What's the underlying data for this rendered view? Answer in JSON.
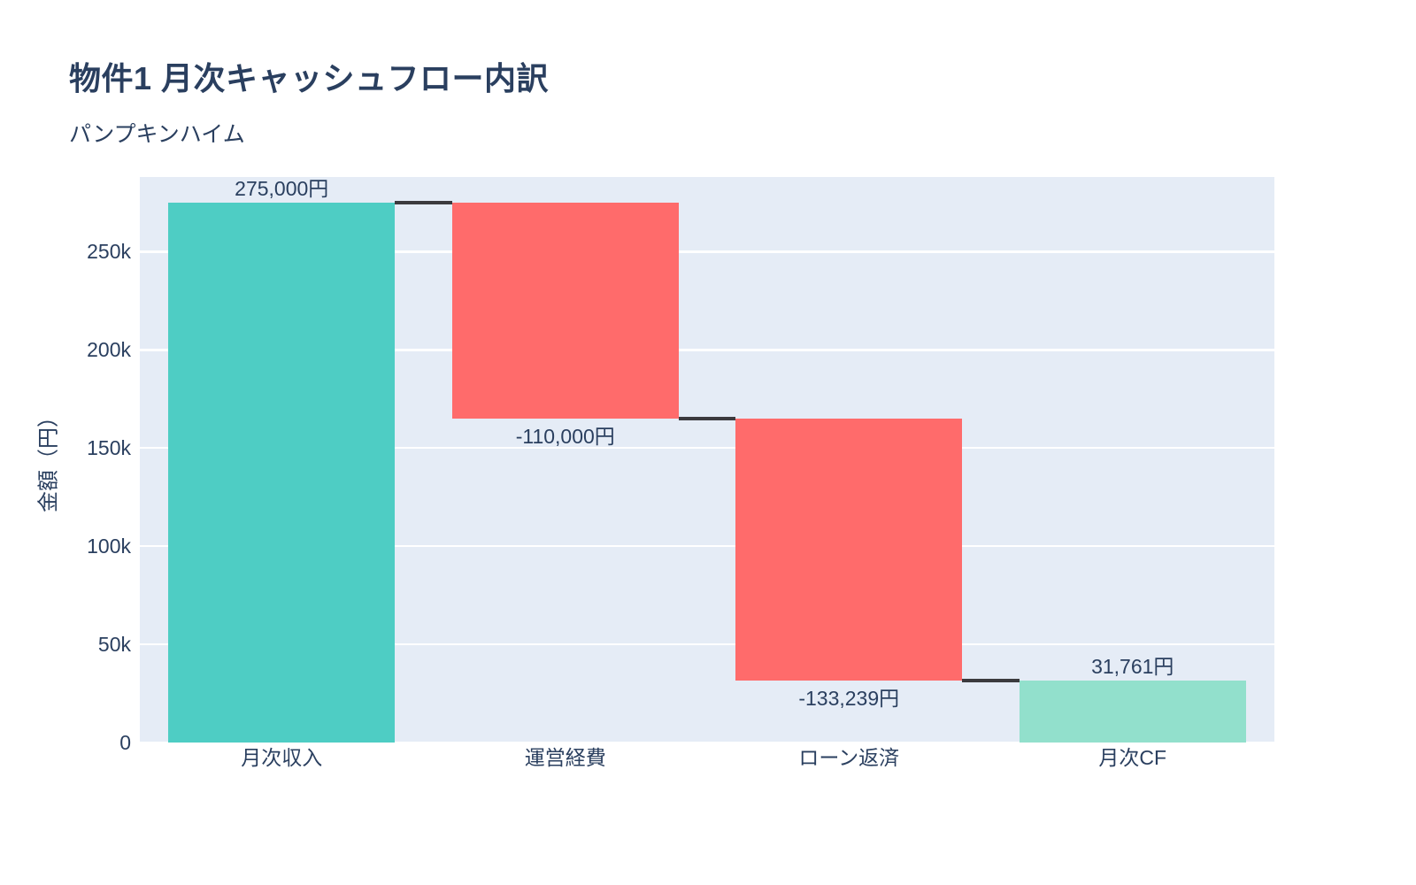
{
  "chart_data": {
    "type": "waterfall",
    "title": "物件1 月次キャッシュフロー内訳",
    "subtitle": "パンプキンハイム",
    "ylabel": "金額（円）",
    "xlabel": "",
    "categories": [
      "月次収入",
      "運営経費",
      "ローン返済",
      "月次CF"
    ],
    "measures": [
      "relative",
      "relative",
      "relative",
      "total"
    ],
    "values": [
      275000,
      -110000,
      -133239,
      31761
    ],
    "bar_labels": [
      "275,000円",
      "-110,000円",
      "-133,239円",
      "31,761円"
    ],
    "running_totals": [
      275000,
      165000,
      31761,
      31761
    ],
    "yticks": {
      "values": [
        0,
        50000,
        100000,
        150000,
        200000,
        250000
      ],
      "labels": [
        "0",
        "50k",
        "100k",
        "150k",
        "200k",
        "250k"
      ]
    },
    "ylim": [
      0,
      288000
    ],
    "grid": true,
    "legend": "none",
    "colors": {
      "increasing": "#4ECDC4",
      "decreasing": "#FF6B6B",
      "total": "#92E0CC",
      "connector": "#3B3A3E",
      "plot_background": "#E5ECF6",
      "gridline": "#FFFFFF",
      "text": "#2A3F5F"
    }
  }
}
